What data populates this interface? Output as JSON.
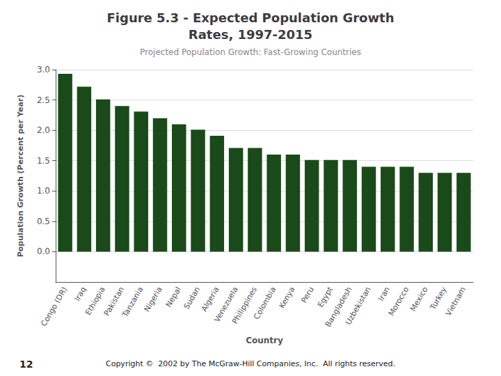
{
  "chart_data": {
    "type": "bar",
    "title": "Figure 5.3 - Expected Population Growth\nRates, 1997-2015",
    "subtitle": "Projected Population Growth: Fast-Growing Countries",
    "xlabel": "Country",
    "ylabel": "Population Growth (Percent per Year)",
    "annotations": [
      "12",
      "Copyright ©  2002 by The McGraw-Hill Companies, Inc.  All rights reserved."
    ],
    "categories": [
      "Congo (DR)",
      "Iraq",
      "Ethiopia",
      "Pakistan",
      "Tanzania",
      "Nigeria",
      "Nepal",
      "Sudan",
      "Algeria",
      "Venezuela",
      "Philippines",
      "Colombia",
      "Kenya",
      "Peru",
      "Egypt",
      "Bangladesh",
      "Uzbekistan",
      "Iran",
      "Morocco",
      "Mexico",
      "Turkey",
      "Vietnam"
    ],
    "values": [
      2.93,
      2.72,
      2.51,
      2.4,
      2.31,
      2.2,
      2.1,
      2.01,
      1.91,
      1.71,
      1.71,
      1.6,
      1.6,
      1.51,
      1.51,
      1.51,
      1.4,
      1.4,
      1.4,
      1.3,
      1.3,
      1.3
    ],
    "color": "#1a4a1a",
    "ylim": [
      -0.5,
      3.0
    ],
    "yticks": [
      {
        "value": 0,
        "label": "0.0"
      },
      0.5,
      {
        "value": 1,
        "label": "1.0"
      },
      1.5,
      {
        "value": 2,
        "label": "2.0"
      },
      2.5,
      {
        "value": 3,
        "label": "3.0"
      }
    ],
    "grid": true
  }
}
